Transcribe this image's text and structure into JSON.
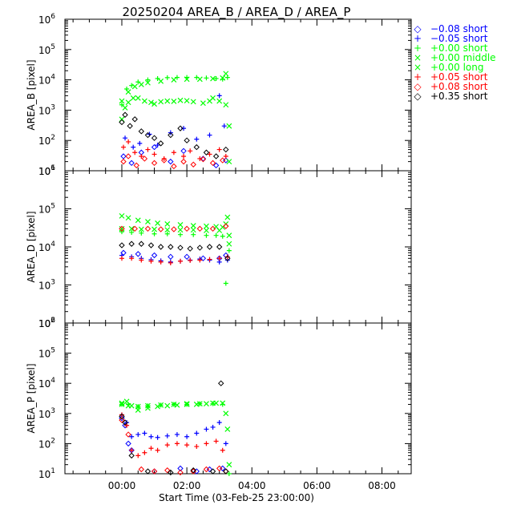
{
  "chart_data": {
    "title": "20250204 AREA_B / AREA_D / AREA_P",
    "type": "scatter",
    "xlabel": "Start Time (03-Feb-25 23:00:00)",
    "x_unit": "hours after 03-Feb-25 23:00:00",
    "xlim": [
      -0.75,
      9.9
    ],
    "x_ticks": [
      {
        "value": 1,
        "label": "00:00"
      },
      {
        "value": 3,
        "label": "02:00"
      },
      {
        "value": 5,
        "label": "04:00"
      },
      {
        "value": 7,
        "label": "06:00"
      },
      {
        "value": 9,
        "label": "08:00"
      }
    ],
    "legend": {
      "placement": "right",
      "entries": [
        {
          "label": "−0.08 short",
          "marker": "◇",
          "color": "#0000ff"
        },
        {
          "label": "−0.05 short",
          "marker": "+",
          "color": "#0000ff"
        },
        {
          "label": "+0.00 short",
          "marker": "+",
          "color": "#00ff00"
        },
        {
          "label": "+0.00 middle",
          "marker": "×",
          "color": "#00ff00"
        },
        {
          "label": "+0.00 long",
          "marker": "×",
          "color": "#00ff00"
        },
        {
          "label": "+0.05 short",
          "marker": "+",
          "color": "#ff0000"
        },
        {
          "label": "+0.08 short",
          "marker": "◇",
          "color": "#ff0000"
        },
        {
          "label": "+0.35 short",
          "marker": "◇",
          "color": "#000000"
        }
      ]
    },
    "panels": [
      {
        "ylabel": "AREA_B [pixel]",
        "yscale": "log",
        "ylim": [
          10,
          1000000
        ],
        "y_ticks": [
          {
            "base": "10",
            "exp": "1"
          },
          {
            "base": "10",
            "exp": "2"
          },
          {
            "base": "10",
            "exp": "3"
          },
          {
            "base": "10",
            "exp": "4"
          },
          {
            "base": "10",
            "exp": "5"
          },
          {
            "base": "10",
            "exp": "6"
          }
        ],
        "series": [
          {
            "name": "−0.08 short",
            "marker": "diamond",
            "color": "#0000ff",
            "x": [
              1.05,
              1.3,
              1.6,
              2.0,
              2.5,
              2.9,
              3.5,
              3.9,
              4.2
            ],
            "y": [
              30,
              18,
              40,
              60,
              20,
              45,
              25,
              15,
              22
            ]
          },
          {
            "name": "−0.05 short",
            "marker": "plus",
            "color": "#0000ff",
            "x": [
              1.1,
              1.35,
              1.55,
              1.85,
              2.1,
              2.5,
              2.9,
              3.3,
              3.7,
              4.0,
              4.15
            ],
            "y": [
              120,
              60,
              80,
              160,
              70,
              180,
              250,
              110,
              150,
              3000,
              300
            ]
          },
          {
            "name": "+0.00 short",
            "marker": "plus",
            "color": "#00ff00",
            "x": [
              1.0,
              1.15,
              1.3,
              1.5,
              1.8,
              2.1,
              2.4,
              2.7,
              3.0,
              3.3,
              3.6,
              3.9,
              4.1,
              4.25
            ],
            "y": [
              1500,
              5000,
              6500,
              8500,
              10000,
              11000,
              11800,
              12000,
              12000,
              12000,
              11500,
              11000,
              10500,
              12000
            ]
          },
          {
            "name": "+0.00 middle",
            "marker": "cross",
            "color": "#00ff00",
            "x": [
              1.0,
              1.1,
              1.2,
              1.35,
              1.5,
              1.7,
              1.9,
              2.0,
              2.2,
              2.4,
              2.6,
              2.8,
              3.0,
              3.2,
              3.5,
              3.7,
              3.8,
              4.0,
              4.2,
              4.3
            ],
            "y": [
              500,
              1200,
              1800,
              2500,
              2500,
              2000,
              1800,
              1600,
              1900,
              2000,
              1950,
              2100,
              2050,
              1900,
              1700,
              2000,
              2500,
              2000,
              1500,
              300
            ]
          },
          {
            "name": "+0.00 long",
            "marker": "cross",
            "color": "#00ff00",
            "x": [
              1.0,
              1.2,
              1.4,
              1.6,
              1.8,
              2.2,
              2.6,
              3.0,
              3.4,
              3.8,
              4.1,
              4.2,
              4.3
            ],
            "y": [
              2000,
              4000,
              6000,
              7000,
              8000,
              9000,
              10000,
              10500,
              10500,
              11000,
              11500,
              16000,
              20
            ]
          },
          {
            "name": "+0.05 short",
            "marker": "plus",
            "color": "#ff0000",
            "x": [
              1.05,
              1.2,
              1.4,
              1.6,
              1.8,
              2.0,
              2.3,
              2.6,
              2.9,
              3.1,
              3.4,
              3.7,
              4.0,
              4.2
            ],
            "y": [
              60,
              90,
              40,
              30,
              50,
              35,
              25,
              40,
              30,
              45,
              25,
              35,
              50,
              30
            ]
          },
          {
            "name": "+0.08 short",
            "marker": "diamond",
            "color": "#ff0000",
            "x": [
              1.05,
              1.2,
              1.45,
              1.7,
              2.0,
              2.3,
              2.6,
              2.9,
              3.2,
              3.5,
              3.8,
              4.1
            ],
            "y": [
              20,
              30,
              15,
              25,
              18,
              22,
              14,
              20,
              16,
              24,
              18,
              22
            ]
          },
          {
            "name": "+0.35 short",
            "marker": "diamond",
            "color": "#000000",
            "x": [
              1.0,
              1.1,
              1.25,
              1.4,
              1.6,
              1.8,
              2.0,
              2.2,
              2.5,
              2.8,
              3.0,
              3.3,
              3.6,
              3.9,
              4.2
            ],
            "y": [
              400,
              700,
              300,
              500,
              200,
              150,
              120,
              80,
              150,
              250,
              100,
              60,
              40,
              30,
              50
            ]
          }
        ]
      },
      {
        "ylabel": "AREA_D [pixel]",
        "yscale": "log",
        "ylim": [
          100,
          1000000
        ],
        "y_ticks": [
          {
            "base": "10",
            "exp": "2"
          },
          {
            "base": "10",
            "exp": "3"
          },
          {
            "base": "10",
            "exp": "4"
          },
          {
            "base": "10",
            "exp": "5"
          },
          {
            "base": "10",
            "exp": "6"
          }
        ],
        "series": [
          {
            "name": "−0.08 short",
            "marker": "diamond",
            "color": "#0000ff",
            "x": [
              1.05,
              1.5,
              2.0,
              2.5,
              3.0,
              3.5,
              4.0,
              4.2
            ],
            "y": [
              7000,
              6500,
              6000,
              5500,
              5500,
              5000,
              5000,
              6000
            ]
          },
          {
            "name": "−0.05 short",
            "marker": "plus",
            "color": "#0000ff",
            "x": [
              1.0,
              1.3,
              1.6,
              1.9,
              2.2,
              2.5,
              2.8,
              3.1,
              3.4,
              3.7,
              4.0,
              4.25
            ],
            "y": [
              6000,
              5500,
              5000,
              4600,
              4300,
              4000,
              4200,
              4500,
              4800,
              4500,
              4000,
              4500
            ]
          },
          {
            "name": "+0.00 short",
            "marker": "plus",
            "color": "#00ff00",
            "x": [
              1.0,
              1.3,
              1.6,
              2.0,
              2.4,
              2.8,
              3.2,
              3.6,
              3.9,
              4.1,
              4.2,
              4.3
            ],
            "y": [
              25000,
              24000,
              23000,
              22000,
              22000,
              21000,
              21000,
              20000,
              20000,
              19000,
              1100,
              8000
            ]
          },
          {
            "name": "+0.00 middle",
            "marker": "cross",
            "color": "#00ff00",
            "x": [
              1.0,
              1.3,
              1.6,
              2.0,
              2.4,
              2.8,
              3.2,
              3.6,
              4.0,
              4.2,
              4.3
            ],
            "y": [
              30000,
              30000,
              29000,
              29000,
              28000,
              28000,
              28000,
              27000,
              27000,
              40000,
              20000
            ]
          },
          {
            "name": "+0.00 long",
            "marker": "cross",
            "color": "#00ff00",
            "x": [
              1.0,
              1.2,
              1.5,
              1.8,
              2.1,
              2.4,
              2.8,
              3.2,
              3.6,
              3.9,
              4.1,
              4.25,
              4.3
            ],
            "y": [
              65000,
              58000,
              50000,
              46000,
              42000,
              40000,
              38000,
              36000,
              35000,
              34000,
              33000,
              60000,
              12000
            ]
          },
          {
            "name": "+0.05 short",
            "marker": "plus",
            "color": "#ff0000",
            "x": [
              1.0,
              1.3,
              1.6,
              1.9,
              2.2,
              2.5,
              2.8,
              3.1,
              3.4,
              3.7,
              4.0,
              4.25
            ],
            "y": [
              5000,
              5000,
              4500,
              4200,
              4000,
              3800,
              4200,
              4400,
              4500,
              4700,
              5000,
              5500
            ]
          },
          {
            "name": "+0.08 short",
            "marker": "diamond",
            "color": "#ff0000",
            "x": [
              1.0,
              1.4,
              1.8,
              2.2,
              2.6,
              3.0,
              3.4,
              3.8,
              4.2
            ],
            "y": [
              30000,
              30000,
              30000,
              29000,
              29000,
              30000,
              30000,
              30000,
              35000
            ]
          },
          {
            "name": "+0.35 short",
            "marker": "diamond",
            "color": "#000000",
            "x": [
              1.0,
              1.3,
              1.6,
              1.9,
              2.2,
              2.5,
              2.8,
              3.1,
              3.4,
              3.7,
              4.0,
              4.25
            ],
            "y": [
              11000,
              12000,
              12000,
              11000,
              10000,
              10000,
              9500,
              9000,
              9500,
              10000,
              10000,
              5000
            ]
          }
        ]
      },
      {
        "ylabel": "AREA_P [pixel]",
        "yscale": "log",
        "ylim": [
          10,
          1000000
        ],
        "y_ticks": [
          {
            "base": "10",
            "exp": "1"
          },
          {
            "base": "10",
            "exp": "2"
          },
          {
            "base": "10",
            "exp": "3"
          },
          {
            "base": "10",
            "exp": "4"
          },
          {
            "base": "10",
            "exp": "5"
          },
          {
            "base": "10",
            "exp": "6"
          }
        ],
        "series": [
          {
            "name": "−0.08 short",
            "marker": "diamond",
            "color": "#0000ff",
            "x": [
              1.0,
              1.1,
              1.2,
              1.3,
              2.0,
              2.8,
              3.3,
              3.7,
              4.1
            ],
            "y": [
              700,
              400,
              100,
              60,
              12,
              15,
              12,
              14,
              15
            ]
          },
          {
            "name": "−0.05 short",
            "marker": "plus",
            "color": "#0000ff",
            "x": [
              1.0,
              1.15,
              1.3,
              1.5,
              1.7,
              1.9,
              2.1,
              2.4,
              2.7,
              3.0,
              3.3,
              3.6,
              3.8,
              4.0,
              4.2
            ],
            "y": [
              900,
              500,
              170,
              200,
              220,
              170,
              160,
              180,
              200,
              170,
              220,
              300,
              350,
              500,
              100
            ]
          },
          {
            "name": "+0.00 short",
            "marker": "plus",
            "color": "#00ff00",
            "x": [
              1.0,
              1.2,
              1.5,
              1.8,
              2.2,
              2.6,
              3.0,
              3.4,
              3.8,
              4.1,
              4.3
            ],
            "y": [
              2000,
              2000,
              1700,
              1800,
              1900,
              2000,
              2000,
              2100,
              2100,
              2000,
              10
            ]
          },
          {
            "name": "+0.00 middle",
            "marker": "cross",
            "color": "#00ff00",
            "x": [
              1.0,
              1.15,
              1.3,
              1.5,
              1.8,
              2.1,
              2.4,
              2.7,
              3.0,
              3.3,
              3.6,
              3.9,
              4.1,
              4.25,
              4.3
            ],
            "y": [
              2200,
              2500,
              1800,
              1300,
              1500,
              1700,
              1800,
              1900,
              2000,
              2000,
              2100,
              2200,
              2200,
              300,
              20
            ]
          },
          {
            "name": "+0.00 long",
            "marker": "cross",
            "color": "#00ff00",
            "x": [
              1.0,
              1.2,
              1.5,
              1.8,
              2.2,
              2.6,
              3.0,
              3.4,
              3.8,
              4.2
            ],
            "y": [
              2000,
              1800,
              1700,
              1800,
              1900,
              2000,
              2100,
              2100,
              2200,
              1000
            ]
          },
          {
            "name": "+0.05 short",
            "marker": "plus",
            "color": "#ff0000",
            "x": [
              1.0,
              1.15,
              1.3,
              1.5,
              1.7,
              1.9,
              2.1,
              2.4,
              2.7,
              3.0,
              3.3,
              3.6,
              3.9,
              4.1
            ],
            "y": [
              900,
              400,
              60,
              40,
              50,
              70,
              60,
              90,
              100,
              90,
              80,
              100,
              120,
              60
            ]
          },
          {
            "name": "+0.08 short",
            "marker": "diamond",
            "color": "#ff0000",
            "x": [
              1.0,
              1.2,
              1.6,
              2.0,
              2.4,
              2.8,
              3.2,
              3.6,
              4.0,
              4.2
            ],
            "y": [
              600,
              200,
              14,
              12,
              13,
              11,
              12,
              14,
              15,
              12
            ]
          },
          {
            "name": "+0.35 short",
            "marker": "diamond",
            "color": "#000000",
            "x": [
              1.0,
              1.1,
              1.3,
              1.8,
              2.5,
              3.2,
              3.8,
              4.05,
              4.2
            ],
            "y": [
              800,
              500,
              40,
              12,
              11,
              13,
              12,
              10000,
              12
            ]
          }
        ]
      }
    ]
  }
}
